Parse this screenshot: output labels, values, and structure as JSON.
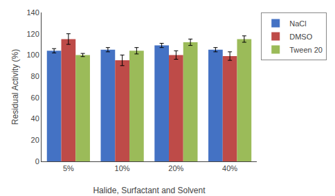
{
  "chart_data": {
    "type": "bar",
    "categories": [
      "5%",
      "10%",
      "20%",
      "40%"
    ],
    "series": [
      {
        "name": "NaCl",
        "color": "#4472C4",
        "values": [
          104,
          105,
          109,
          105
        ],
        "errors": [
          2,
          2,
          2,
          2
        ]
      },
      {
        "name": "DMSO",
        "color": "#BE4B48",
        "values": [
          115,
          95,
          100,
          99
        ],
        "errors": [
          5,
          5,
          4,
          4
        ]
      },
      {
        "name": "Tween 20",
        "color": "#9BBB59",
        "values": [
          100,
          104,
          112,
          115
        ],
        "errors": [
          1.5,
          3,
          3,
          3
        ]
      }
    ],
    "xlabel": "Halide, Surfactant and Solvent",
    "ylabel": "Residual Activity (%)",
    "ylim": [
      0,
      140
    ],
    "yticks": [
      0,
      20,
      40,
      60,
      80,
      100,
      120,
      140
    ],
    "grid": false,
    "legend": "right"
  }
}
